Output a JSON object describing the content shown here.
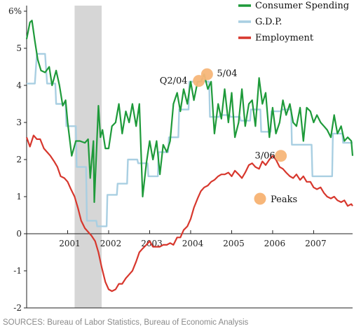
{
  "source": "SOURCES: Bureau of Labor Statistics, Bureau of Economic Analysis",
  "colors": {
    "consumer_spending": "#1e9a3a",
    "gdp": "#a9cfe2",
    "employment": "#d7372d",
    "recession": "#d6d6d6",
    "peak": "#f7b679",
    "axis": "#222222"
  },
  "chart_data": {
    "type": "line",
    "title": "",
    "xlabel": "",
    "ylabel": "",
    "xlim": [
      2000.0,
      2007.95
    ],
    "ylim": [
      -2,
      6
    ],
    "y_ticks": [
      {
        "value": 6,
        "label": "6%"
      },
      {
        "value": 5,
        "label": "5"
      },
      {
        "value": 4,
        "label": "4"
      },
      {
        "value": 3,
        "label": "3"
      },
      {
        "value": 2,
        "label": "2"
      },
      {
        "value": 1,
        "label": "1"
      },
      {
        "value": 0,
        "label": "0"
      },
      {
        "value": -1,
        "label": "-1"
      },
      {
        "value": -2,
        "label": "-2"
      }
    ],
    "x_ticks": [
      {
        "value": 2001,
        "label": "2001"
      },
      {
        "value": 2002,
        "label": "2002"
      },
      {
        "value": 2003,
        "label": "2003"
      },
      {
        "value": 2004,
        "label": "2004"
      },
      {
        "value": 2005,
        "label": "2005"
      },
      {
        "value": 2006,
        "label": "2006"
      },
      {
        "value": 2007,
        "label": "2007"
      }
    ],
    "recession_band": [
      2001.17,
      2001.83
    ],
    "legend": [
      {
        "name": "Consumer Spending",
        "series": "consumer_spending"
      },
      {
        "name": "G.D.P.",
        "series": "gdp"
      },
      {
        "name": "Employment",
        "series": "employment"
      }
    ],
    "series": [
      {
        "name": "Consumer Spending",
        "key": "consumer_spending",
        "x": [
          2000.0,
          2000.08,
          2000.13,
          2000.2,
          2000.27,
          2000.35,
          2000.45,
          2000.55,
          2000.62,
          2000.72,
          2000.8,
          2000.88,
          2000.95,
          2001.0,
          2001.1,
          2001.2,
          2001.3,
          2001.42,
          2001.5,
          2001.55,
          2001.63,
          2001.65,
          2001.75,
          2001.8,
          2001.85,
          2001.92,
          2002.0,
          2002.08,
          2002.17,
          2002.25,
          2002.33,
          2002.42,
          2002.5,
          2002.58,
          2002.67,
          2002.75,
          2002.83,
          2002.92,
          2003.0,
          2003.08,
          2003.17,
          2003.25,
          2003.33,
          2003.42,
          2003.5,
          2003.58,
          2003.67,
          2003.75,
          2003.83,
          2003.92,
          2004.0,
          2004.08,
          2004.17,
          2004.25,
          2004.33,
          2004.42,
          2004.5,
          2004.58,
          2004.67,
          2004.75,
          2004.83,
          2004.92,
          2005.0,
          2005.08,
          2005.17,
          2005.25,
          2005.33,
          2005.42,
          2005.5,
          2005.58,
          2005.67,
          2005.75,
          2005.83,
          2005.92,
          2006.0,
          2006.08,
          2006.17,
          2006.25,
          2006.33,
          2006.42,
          2006.5,
          2006.58,
          2006.67,
          2006.75,
          2006.83,
          2006.92,
          2007.0,
          2007.08,
          2007.17,
          2007.25,
          2007.33,
          2007.42,
          2007.5,
          2007.58,
          2007.67,
          2007.75,
          2007.83,
          2007.92,
          2007.95
        ],
        "values": [
          5.25,
          5.7,
          5.75,
          5.2,
          4.7,
          4.4,
          4.35,
          4.5,
          4.0,
          4.4,
          4.0,
          3.45,
          3.6,
          3.0,
          2.1,
          2.5,
          2.5,
          2.45,
          2.55,
          1.5,
          2.5,
          0.85,
          3.45,
          2.6,
          2.8,
          2.3,
          2.3,
          2.9,
          3.0,
          3.5,
          2.7,
          3.3,
          3.0,
          3.5,
          2.9,
          3.5,
          1.0,
          1.9,
          2.5,
          2.0,
          2.5,
          1.6,
          2.4,
          2.2,
          2.5,
          3.5,
          3.8,
          3.3,
          3.9,
          3.5,
          4.1,
          3.6,
          4.1,
          4.1,
          4.3,
          3.9,
          4.1,
          2.7,
          3.5,
          3.1,
          3.9,
          3.0,
          3.8,
          2.6,
          3.0,
          3.9,
          2.9,
          3.5,
          3.6,
          2.9,
          4.2,
          3.5,
          3.8,
          2.6,
          3.4,
          2.7,
          3.0,
          3.6,
          3.2,
          3.5,
          3.0,
          2.9,
          3.4,
          2.5,
          3.4,
          3.3,
          3.0,
          3.2,
          3.0,
          2.9,
          2.8,
          2.6,
          3.2,
          2.7,
          2.9,
          2.5,
          2.6,
          2.5,
          2.1
        ]
      },
      {
        "name": "G.D.P.",
        "key": "gdp",
        "x": [
          2000.0,
          2000.2,
          2000.25,
          2000.45,
          2000.5,
          2000.7,
          2000.72,
          2000.95,
          2000.97,
          2001.2,
          2001.22,
          2001.45,
          2001.47,
          2001.7,
          2001.72,
          2001.95,
          2001.97,
          2002.2,
          2002.22,
          2002.45,
          2002.47,
          2002.7,
          2002.72,
          2002.95,
          2002.97,
          2003.2,
          2003.22,
          2003.45,
          2003.47,
          2003.7,
          2003.72,
          2003.95,
          2003.97,
          2004.2,
          2004.22,
          2004.45,
          2004.47,
          2004.7,
          2004.72,
          2004.95,
          2004.97,
          2005.2,
          2005.22,
          2005.45,
          2005.47,
          2005.7,
          2005.72,
          2005.95,
          2005.97,
          2006.2,
          2006.22,
          2006.45,
          2006.47,
          2006.7,
          2006.72,
          2006.95,
          2006.97,
          2007.2,
          2007.22,
          2007.45,
          2007.47,
          2007.7,
          2007.72,
          2007.95
        ],
        "values": [
          4.05,
          4.05,
          4.85,
          4.85,
          4.05,
          4.05,
          3.5,
          3.5,
          2.9,
          2.9,
          1.8,
          1.8,
          0.35,
          0.35,
          0.2,
          0.2,
          1.05,
          1.05,
          1.35,
          1.35,
          2.0,
          2.0,
          1.9,
          1.9,
          1.55,
          1.55,
          2.2,
          2.2,
          2.6,
          2.6,
          3.35,
          3.35,
          4.1,
          4.1,
          4.1,
          4.1,
          3.15,
          3.15,
          3.2,
          3.2,
          3.15,
          3.15,
          3.05,
          3.05,
          3.35,
          3.35,
          2.75,
          2.75,
          3.3,
          3.3,
          3.35,
          3.35,
          2.4,
          2.4,
          2.4,
          2.4,
          1.55,
          1.55,
          1.55,
          1.55,
          2.7,
          2.7,
          2.45,
          2.45
        ]
      },
      {
        "name": "Employment",
        "key": "employment",
        "x": [
          2000.0,
          2000.08,
          2000.17,
          2000.25,
          2000.33,
          2000.42,
          2000.5,
          2000.58,
          2000.67,
          2000.75,
          2000.83,
          2000.92,
          2001.0,
          2001.08,
          2001.17,
          2001.25,
          2001.33,
          2001.42,
          2001.5,
          2001.58,
          2001.67,
          2001.75,
          2001.83,
          2001.92,
          2002.0,
          2002.08,
          2002.17,
          2002.25,
          2002.33,
          2002.42,
          2002.5,
          2002.58,
          2002.67,
          2002.75,
          2002.83,
          2002.92,
          2003.0,
          2003.08,
          2003.17,
          2003.25,
          2003.33,
          2003.42,
          2003.5,
          2003.58,
          2003.67,
          2003.75,
          2003.83,
          2003.92,
          2004.0,
          2004.08,
          2004.17,
          2004.25,
          2004.33,
          2004.42,
          2004.5,
          2004.58,
          2004.67,
          2004.75,
          2004.83,
          2004.92,
          2005.0,
          2005.08,
          2005.17,
          2005.25,
          2005.33,
          2005.42,
          2005.5,
          2005.58,
          2005.67,
          2005.75,
          2005.83,
          2005.92,
          2006.0,
          2006.08,
          2006.17,
          2006.25,
          2006.33,
          2006.42,
          2006.5,
          2006.58,
          2006.67,
          2006.75,
          2006.83,
          2006.92,
          2007.0,
          2007.08,
          2007.17,
          2007.25,
          2007.33,
          2007.42,
          2007.5,
          2007.58,
          2007.67,
          2007.75,
          2007.83,
          2007.92,
          2007.95
        ],
        "values": [
          2.6,
          2.35,
          2.65,
          2.55,
          2.55,
          2.3,
          2.2,
          2.1,
          1.95,
          1.8,
          1.55,
          1.5,
          1.4,
          1.2,
          1.0,
          0.7,
          0.35,
          0.15,
          0.05,
          -0.05,
          -0.2,
          -0.5,
          -0.9,
          -1.3,
          -1.5,
          -1.55,
          -1.5,
          -1.35,
          -1.35,
          -1.2,
          -1.1,
          -1.0,
          -0.75,
          -0.5,
          -0.4,
          -0.3,
          -0.2,
          -0.35,
          -0.35,
          -0.35,
          -0.3,
          -0.3,
          -0.25,
          -0.3,
          -0.1,
          -0.1,
          0.1,
          0.2,
          0.4,
          0.7,
          0.95,
          1.15,
          1.25,
          1.3,
          1.4,
          1.45,
          1.55,
          1.6,
          1.6,
          1.65,
          1.55,
          1.7,
          1.6,
          1.5,
          1.65,
          1.85,
          1.9,
          1.8,
          1.75,
          1.95,
          1.85,
          2.0,
          2.1,
          2.0,
          1.8,
          1.75,
          1.65,
          1.55,
          1.5,
          1.6,
          1.45,
          1.55,
          1.4,
          1.4,
          1.25,
          1.2,
          1.25,
          1.1,
          1.0,
          0.95,
          1.0,
          0.9,
          0.85,
          0.9,
          0.75,
          0.8,
          0.75
        ]
      }
    ],
    "peaks": [
      {
        "x": 2004.2,
        "y": 4.12,
        "label": "Q2/04"
      },
      {
        "x": 2004.4,
        "y": 4.3,
        "label": "5/04"
      },
      {
        "x": 2006.2,
        "y": 2.1,
        "label": "3/06"
      }
    ],
    "peak_legend": "Peaks"
  }
}
